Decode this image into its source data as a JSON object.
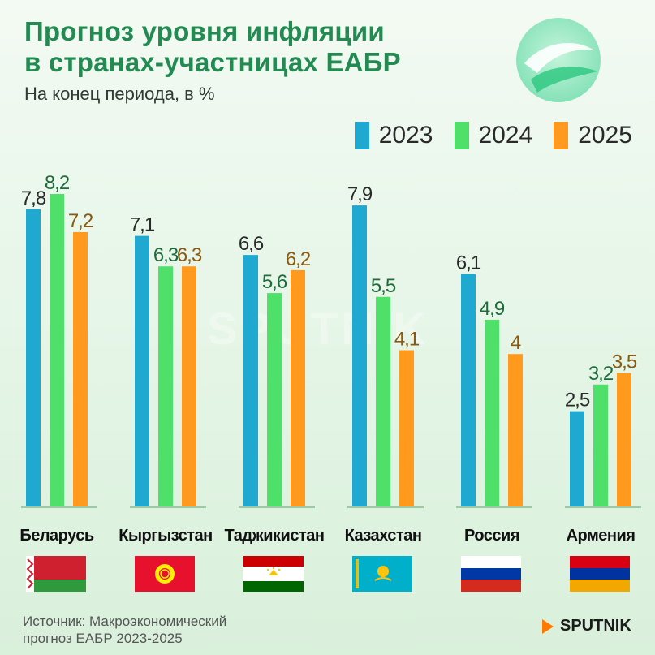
{
  "title_line1": "Прогноз уровня инфляции",
  "title_line2": "в странах-участницах ЕАБР",
  "subtitle": "На конец периода, в %",
  "watermark": "SPUTNIK",
  "source_line1": "Источник: Макроэкономический",
  "source_line2": "прогноз ЕАБР 2023-2025",
  "brand": "SPUTNIK",
  "colors": {
    "title": "#238a52",
    "s2023": "#1fa9d1",
    "s2024": "#4fe06a",
    "s2025": "#ff9a1e",
    "label2023": "#2a2a2a",
    "label2024": "#1f6b3c",
    "label2025": "#8a5a10"
  },
  "chart_data": {
    "type": "bar",
    "title": "Прогноз уровня инфляции в странах-участницах ЕАБР",
    "subtitle": "На конец периода, в %",
    "categories": [
      "Беларусь",
      "Кыргызстан",
      "Таджикистан",
      "Казахстан",
      "Россия",
      "Армения"
    ],
    "series": [
      {
        "name": "2023",
        "values": [
          7.8,
          7.1,
          6.6,
          7.9,
          6.1,
          2.5
        ],
        "labels": [
          "7,8",
          "7,1",
          "6,6",
          "7,9",
          "6,1",
          "2,5"
        ]
      },
      {
        "name": "2024",
        "values": [
          8.2,
          6.3,
          5.6,
          5.5,
          4.9,
          3.2
        ],
        "labels": [
          "8,2",
          "6,3",
          "5,6",
          "5,5",
          "4,9",
          "3,2"
        ]
      },
      {
        "name": "2025",
        "values": [
          7.2,
          6.3,
          6.2,
          4.1,
          4,
          3.5
        ],
        "labels": [
          "7,2",
          "6,3",
          "6,2",
          "4,1",
          "4",
          "3,5"
        ]
      }
    ],
    "xlabel": "",
    "ylabel": "",
    "ylim": [
      0,
      8.2
    ],
    "legend": "top-right",
    "grid": false
  }
}
